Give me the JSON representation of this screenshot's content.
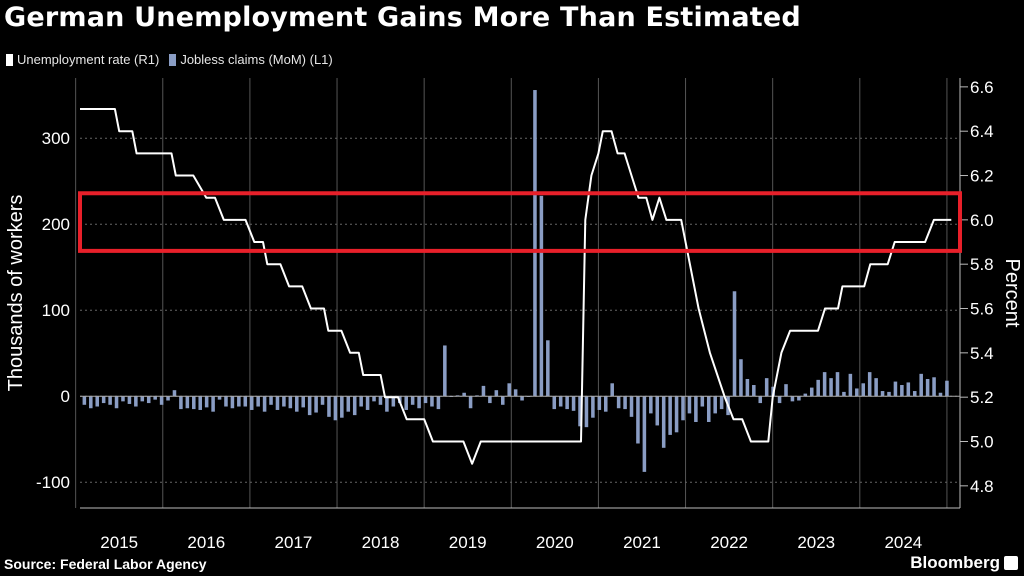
{
  "header": {
    "title": "German Unemployment Gains More Than Estimated"
  },
  "footer": {
    "source": "Source: Federal Labor Agency",
    "brand": "Bloomberg"
  },
  "colors": {
    "background": "#000000",
    "line": "#ffffff",
    "bars": "#8a9dc4",
    "highlight": "#e8202a",
    "grid": "#555555"
  },
  "chart_data": {
    "type": "bar+line",
    "title": "German Unemployment Gains More Than Estimated",
    "legend": [
      "Unemployment rate (R1)",
      "Jobless claims (MoM) (L1)"
    ],
    "legend_position": "top-left",
    "ylabel_left": "Thousands of workers",
    "ylabel_right": "Percent",
    "left_axis": {
      "ylim": [
        -130,
        370
      ],
      "ticks": [
        -100,
        0,
        100,
        200,
        300
      ]
    },
    "right_axis": {
      "ylim": [
        4.7,
        6.64
      ],
      "ticks": [
        4.8,
        5.0,
        5.2,
        5.4,
        5.6,
        5.8,
        6.0,
        6.2,
        6.4,
        6.6
      ]
    },
    "x_tick_labels": [
      "2015",
      "2016",
      "2017",
      "2018",
      "2019",
      "2020",
      "2021",
      "2022",
      "2023",
      "2024"
    ],
    "grid": true,
    "highlight_band_percent": [
      5.86,
      6.12
    ],
    "series": [
      {
        "name": "Jobless claims (MoM)",
        "axis": "left",
        "kind": "bar",
        "values": [
          -10,
          -14,
          -12,
          -8,
          -10,
          -14,
          -6,
          -9,
          -12,
          -6,
          -8,
          -4,
          -10,
          -5,
          7,
          -15,
          -14,
          -15,
          -16,
          -13,
          -18,
          -4,
          -12,
          -14,
          -12,
          -12,
          -16,
          -12,
          -18,
          -10,
          -16,
          -12,
          -14,
          -18,
          -13,
          -22,
          -19,
          -10,
          -24,
          -28,
          -25,
          -18,
          -22,
          -12,
          -16,
          -6,
          -10,
          -18,
          -12,
          -8,
          -16,
          -10,
          -14,
          -8,
          -12,
          -15,
          59,
          0,
          1,
          4,
          -14,
          1,
          12,
          -8,
          7,
          -10,
          15,
          8,
          -5,
          0,
          356,
          233,
          65,
          -15,
          -12,
          -15,
          -17,
          -35,
          -36,
          -25,
          -16,
          -18,
          15,
          -14,
          -15,
          -24,
          -55,
          -88,
          -20,
          -34,
          -60,
          -45,
          -42,
          -28,
          -20,
          -30,
          -12,
          -30,
          -20,
          -15,
          -22,
          122,
          43,
          20,
          13,
          -8,
          21,
          11,
          -8,
          14,
          -6,
          -5,
          3,
          10,
          19,
          28,
          21,
          28,
          5,
          26,
          9,
          15,
          28,
          21,
          6,
          5,
          17,
          13,
          16,
          6,
          26,
          20,
          22,
          4,
          18
        ]
      },
      {
        "name": "Unemployment rate",
        "axis": "right",
        "kind": "line",
        "points": [
          [
            2014.55,
            6.5
          ],
          [
            2014.95,
            6.5
          ],
          [
            2015.0,
            6.4
          ],
          [
            2015.15,
            6.4
          ],
          [
            2015.2,
            6.3
          ],
          [
            2015.6,
            6.3
          ],
          [
            2015.65,
            6.2
          ],
          [
            2015.85,
            6.2
          ],
          [
            2016.0,
            6.1
          ],
          [
            2016.1,
            6.1
          ],
          [
            2016.2,
            6.0
          ],
          [
            2016.45,
            6.0
          ],
          [
            2016.55,
            5.9
          ],
          [
            2016.65,
            5.9
          ],
          [
            2016.7,
            5.8
          ],
          [
            2016.85,
            5.8
          ],
          [
            2016.95,
            5.7
          ],
          [
            2017.1,
            5.7
          ],
          [
            2017.2,
            5.6
          ],
          [
            2017.35,
            5.6
          ],
          [
            2017.4,
            5.5
          ],
          [
            2017.55,
            5.5
          ],
          [
            2017.65,
            5.4
          ],
          [
            2017.75,
            5.4
          ],
          [
            2017.8,
            5.3
          ],
          [
            2018.0,
            5.3
          ],
          [
            2018.05,
            5.2
          ],
          [
            2018.2,
            5.2
          ],
          [
            2018.3,
            5.1
          ],
          [
            2018.5,
            5.1
          ],
          [
            2018.6,
            5.0
          ],
          [
            2018.95,
            5.0
          ],
          [
            2019.05,
            4.9
          ],
          [
            2019.15,
            5.0
          ],
          [
            2019.8,
            5.0
          ],
          [
            2019.95,
            5.0
          ],
          [
            2020.3,
            5.0
          ],
          [
            2020.35,
            6.0
          ],
          [
            2020.42,
            6.2
          ],
          [
            2020.5,
            6.3
          ],
          [
            2020.55,
            6.4
          ],
          [
            2020.65,
            6.4
          ],
          [
            2020.72,
            6.3
          ],
          [
            2020.8,
            6.3
          ],
          [
            2020.88,
            6.2
          ],
          [
            2020.96,
            6.1
          ],
          [
            2021.05,
            6.1
          ],
          [
            2021.12,
            6.0
          ],
          [
            2021.2,
            6.1
          ],
          [
            2021.28,
            6.0
          ],
          [
            2021.45,
            6.0
          ],
          [
            2021.55,
            5.8
          ],
          [
            2021.65,
            5.6
          ],
          [
            2021.78,
            5.4
          ],
          [
            2021.95,
            5.2
          ],
          [
            2022.05,
            5.1
          ],
          [
            2022.15,
            5.1
          ],
          [
            2022.25,
            5.0
          ],
          [
            2022.45,
            5.0
          ],
          [
            2022.5,
            5.2
          ],
          [
            2022.6,
            5.4
          ],
          [
            2022.7,
            5.5
          ],
          [
            2023.02,
            5.5
          ],
          [
            2023.1,
            5.6
          ],
          [
            2023.25,
            5.6
          ],
          [
            2023.3,
            5.7
          ],
          [
            2023.55,
            5.7
          ],
          [
            2023.62,
            5.8
          ],
          [
            2023.82,
            5.8
          ],
          [
            2023.9,
            5.9
          ],
          [
            2024.25,
            5.9
          ],
          [
            2024.35,
            6.0
          ],
          [
            2024.55,
            6.0
          ]
        ]
      }
    ]
  }
}
